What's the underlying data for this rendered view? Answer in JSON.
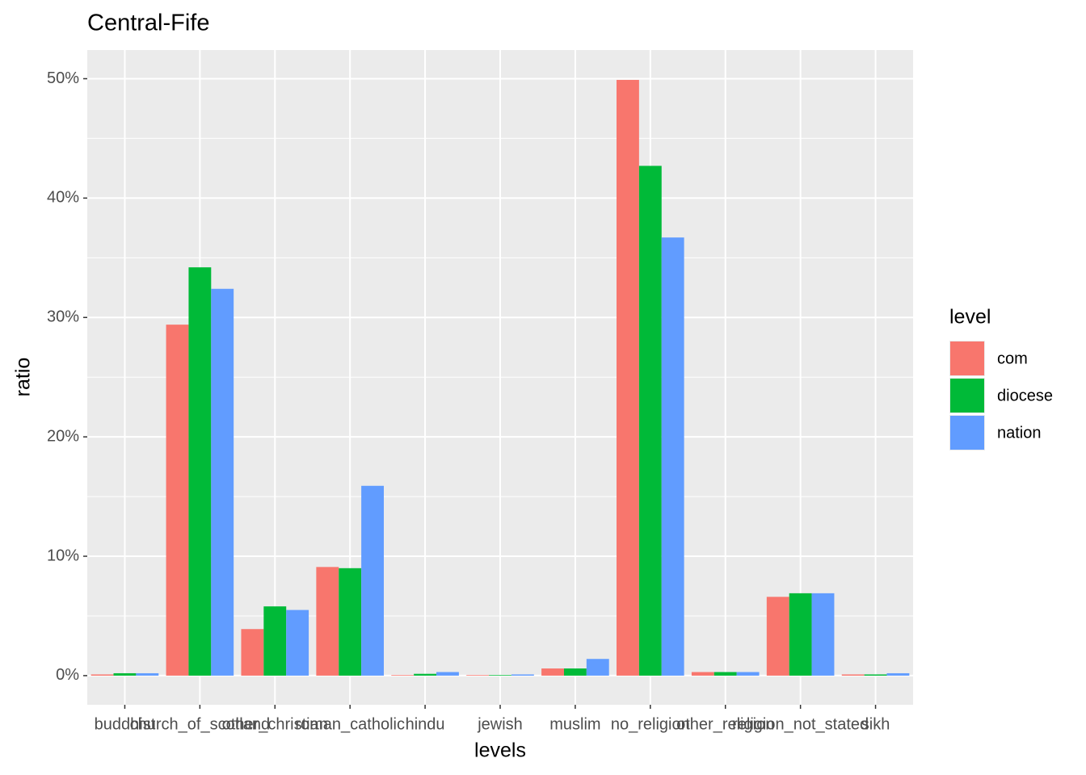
{
  "chart_data": {
    "type": "bar",
    "title": "Central-Fife",
    "x_label": "levels",
    "y_label": "ratio",
    "categories": [
      "buddhist",
      "church_of_scotland",
      "other_christian",
      "roman_catholic",
      "hindu",
      "jewish",
      "muslim",
      "no_religion",
      "other_religion",
      "religion_not_stated",
      "sikh"
    ],
    "series": [
      {
        "name": "com",
        "color": "#f8766d",
        "values": [
          0.1,
          29.4,
          3.9,
          9.1,
          0.05,
          0.05,
          0.6,
          49.9,
          0.3,
          6.6,
          0.1
        ]
      },
      {
        "name": "diocese",
        "color": "#00ba38",
        "values": [
          0.2,
          34.2,
          5.8,
          9.0,
          0.15,
          0.05,
          0.6,
          42.7,
          0.3,
          6.9,
          0.1
        ]
      },
      {
        "name": "nation",
        "color": "#619cff",
        "values": [
          0.2,
          32.4,
          5.5,
          15.9,
          0.3,
          0.1,
          1.4,
          36.7,
          0.3,
          6.9,
          0.2
        ]
      }
    ],
    "legend_title": "level",
    "ylim": [
      -2.44,
      52.4
    ],
    "yticks": [
      {
        "value": 0,
        "label": "0%"
      },
      {
        "value": 10,
        "label": "10%"
      },
      {
        "value": 20,
        "label": "20%"
      },
      {
        "value": 30,
        "label": "30%"
      },
      {
        "value": 40,
        "label": "40%"
      },
      {
        "value": 50,
        "label": "50%"
      }
    ],
    "grid": true,
    "legend": "right"
  }
}
